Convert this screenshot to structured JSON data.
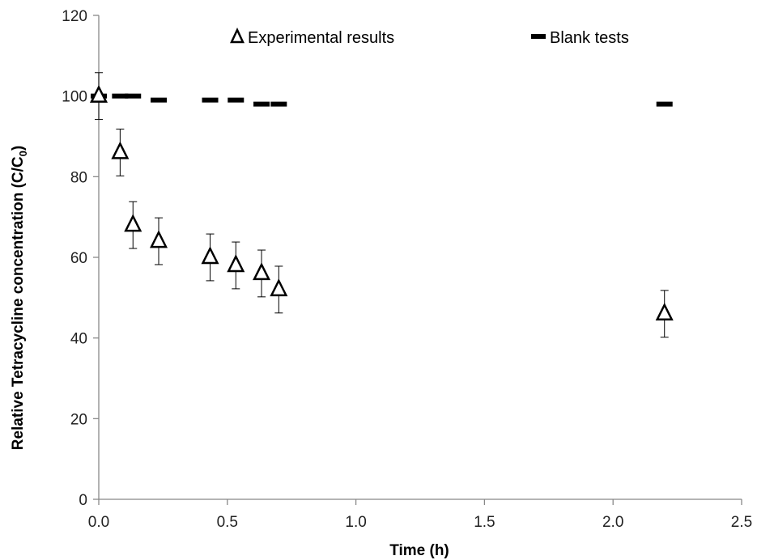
{
  "chart_data": {
    "type": "scatter",
    "xlabel": "Time (h)",
    "ylabel": "Relative Tetracycline concentration (C/C",
    "ylabel_subscript": "0",
    "ylabel_suffix": ")",
    "xlim": [
      0,
      2.5
    ],
    "ylim": [
      0,
      120
    ],
    "x_ticks": [
      "0.0",
      "0.5",
      "1.0",
      "1.5",
      "2.0",
      "2.5"
    ],
    "y_ticks": [
      "0",
      "20",
      "40",
      "60",
      "80",
      "100",
      "120"
    ],
    "grid": false,
    "legend_placement": "top",
    "series": [
      {
        "name": "Experimental results",
        "marker": "open-triangle",
        "color": "#000000",
        "x": [
          0,
          0.083,
          0.133,
          0.233,
          0.433,
          0.533,
          0.633,
          0.7,
          2.2
        ],
        "y": [
          100,
          86,
          68,
          64,
          60,
          58,
          56,
          52,
          46
        ],
        "error": [
          5.8,
          5.8,
          5.8,
          5.8,
          5.8,
          5.8,
          5.8,
          5.8,
          5.8
        ]
      },
      {
        "name": "Blank tests",
        "marker": "dash",
        "color": "#000000",
        "x": [
          0,
          0.083,
          0.133,
          0.233,
          0.433,
          0.533,
          0.633,
          0.7,
          2.2
        ],
        "y": [
          100,
          100,
          100,
          99,
          99,
          99,
          98,
          98,
          98
        ]
      }
    ]
  }
}
